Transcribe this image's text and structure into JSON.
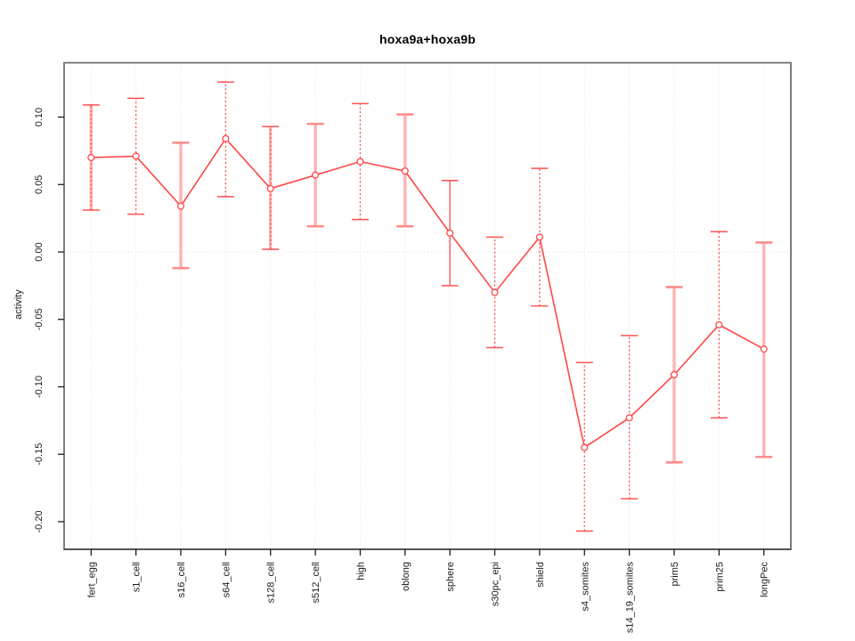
{
  "chart_data": {
    "type": "line",
    "title": "hoxa9a+hoxa9b",
    "ylabel": "activity",
    "xlabel": "",
    "categories": [
      "fert_egg",
      "s1_cell",
      "s16_cell",
      "s64_cell",
      "s128_cell",
      "s512_cell",
      "high",
      "oblong",
      "sphere",
      "s30pc_epi",
      "shield",
      "s4_somites",
      "s14_19_somites",
      "prim5",
      "prim25",
      "longPec"
    ],
    "series": [
      {
        "name": "activity",
        "values": [
          0.07,
          0.071,
          0.034,
          0.084,
          0.047,
          0.057,
          0.067,
          0.06,
          0.014,
          -0.03,
          0.011,
          -0.145,
          -0.123,
          -0.091,
          -0.054,
          -0.072
        ]
      }
    ],
    "error_low": [
      0.031,
      0.028,
      -0.012,
      0.041,
      0.002,
      0.019,
      0.024,
      0.019,
      -0.025,
      -0.071,
      -0.04,
      -0.207,
      -0.183,
      -0.156,
      -0.123,
      -0.152
    ],
    "error_high": [
      0.109,
      0.114,
      0.081,
      0.126,
      0.093,
      0.095,
      0.11,
      0.102,
      0.053,
      0.011,
      0.062,
      -0.082,
      -0.062,
      -0.026,
      0.015,
      0.007
    ],
    "error_bar_styles": [
      "pink_dotted",
      "dotted",
      "pink",
      "dotted",
      "pink_dotted",
      "pink",
      "dotted",
      "pink",
      "solid",
      "dotted",
      "dotted",
      "dotted",
      "dotted",
      "pink",
      "dotted",
      "pink"
    ],
    "ytick_values": [
      0.1,
      0.05,
      0.0,
      -0.05,
      -0.1,
      -0.15,
      -0.2
    ],
    "ytick_labels": [
      "0.10",
      "0.05",
      "0.00",
      "-0.05",
      "-0.10",
      "-0.15",
      "-0.20"
    ],
    "ylim": [
      -0.2205,
      0.1403
    ],
    "grid": {
      "vertical_per_category": true,
      "horizontal_at_zero": true
    },
    "legend": null,
    "colors": {
      "series": "#ff4747",
      "point_fill": "#ffffff",
      "error_dotted": "#ff5050",
      "error_solid": "#ff6b6b",
      "error_pink": "#ffb3b3",
      "error_pink_cap": "#ff8c8c",
      "grid": "#dedede",
      "box": "#6f6f6f",
      "axis": "#1c1c1c",
      "text": "#1a1a1a"
    }
  }
}
